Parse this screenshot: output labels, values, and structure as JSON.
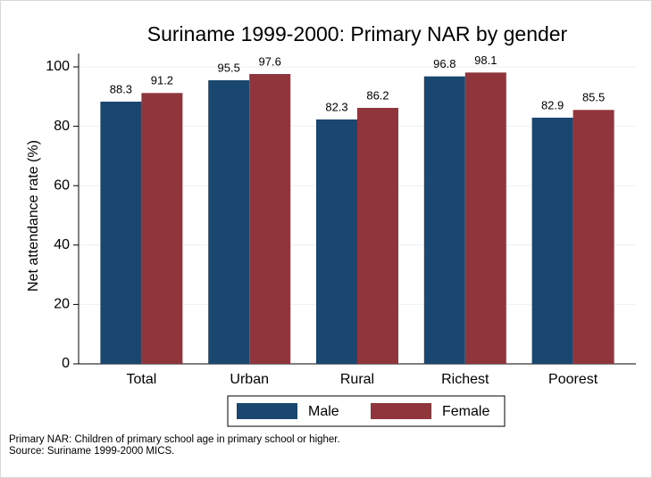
{
  "chart_data": {
    "type": "bar",
    "title": "Suriname 1999-2000: Primary NAR by gender",
    "ylabel": "Net attendance rate (%)",
    "categories": [
      "Total",
      "Urban",
      "Rural",
      "Richest",
      "Poorest"
    ],
    "series": [
      {
        "name": "Male",
        "color": "#1a476f",
        "values": [
          88.3,
          95.5,
          82.3,
          96.8,
          82.9
        ]
      },
      {
        "name": "Female",
        "color": "#90353b",
        "values": [
          91.2,
          97.6,
          86.2,
          98.1,
          85.5
        ]
      }
    ],
    "ylim": [
      0,
      100
    ],
    "yticks": [
      0,
      20,
      40,
      60,
      80,
      100
    ],
    "grid": true,
    "legend": "bottom",
    "notes": [
      "Primary NAR: Children of primary school age in primary school or higher.",
      "Source: Suriname 1999-2000 MICS."
    ]
  }
}
